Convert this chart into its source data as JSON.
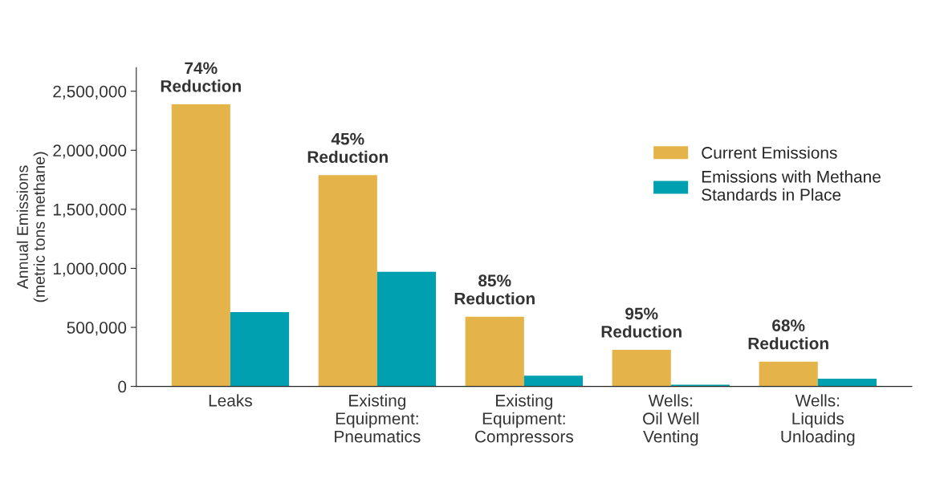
{
  "chart_data": {
    "type": "bar",
    "ylabel": "Annual Emissions\n(metric tons methane)",
    "categories": [
      "Leaks",
      "Existing\nEquipment:\nPneumatics",
      "Existing\nEquipment:\nCompressors",
      "Wells:\nOil Well\nVenting",
      "Wells:\nLiquids\nUnloading"
    ],
    "series": [
      {
        "name": "Current Emissions",
        "color": "#e4b44a",
        "values": [
          2390000,
          1790000,
          590000,
          310000,
          210000
        ]
      },
      {
        "name": "Emissions with Methane\nStandards in Place",
        "color": "#00a0b0",
        "values": [
          630000,
          970000,
          90000,
          15000,
          65000
        ]
      }
    ],
    "ylim": [
      0,
      2700000
    ],
    "yticks": [
      {
        "value": 0,
        "label": "0"
      },
      {
        "value": 500000,
        "label": "500,000"
      },
      {
        "value": 1000000,
        "label": "1,000,000"
      },
      {
        "value": 1500000,
        "label": "1,500,000"
      },
      {
        "value": 2000000,
        "label": "2,000,000"
      },
      {
        "value": 2500000,
        "label": "2,500,000"
      }
    ],
    "annotations": [
      {
        "text": "74%\nReduction",
        "x": "Leaks",
        "y": 2390000
      },
      {
        "text": "45%\nReduction",
        "x": "Existing\nEquipment:\nPneumatics",
        "y": 1790000
      },
      {
        "text": "85%\nReduction",
        "x": "Existing\nEquipment:\nCompressors",
        "y": 590000
      },
      {
        "text": "95%\nReduction",
        "x": "Wells:\nOil Well\nVenting",
        "y": 310000
      },
      {
        "text": "68%\nReduction",
        "x": "Wells:\nLiquids\nUnloading",
        "y": 210000
      }
    ],
    "legend": "top right",
    "grid": false
  }
}
